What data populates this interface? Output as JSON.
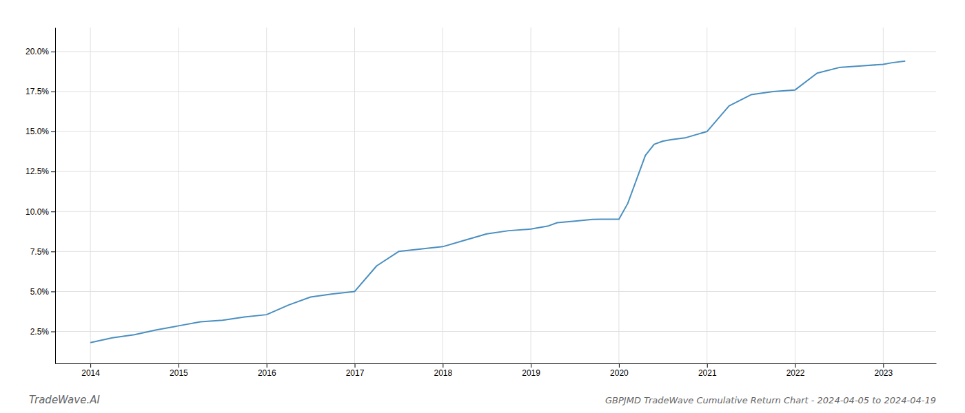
{
  "chart_data": {
    "type": "line",
    "title": "GBPJMD TradeWave Cumulative Return Chart - 2024-04-05 to 2024-04-19",
    "annotations": [
      "TradeWave.AI"
    ],
    "color": "#4a8fc0",
    "grid": true,
    "x": [
      2014.0,
      2014.25,
      2014.5,
      2014.75,
      2015.0,
      2015.25,
      2015.5,
      2015.75,
      2016.0,
      2016.25,
      2016.5,
      2016.75,
      2017.0,
      2017.25,
      2017.5,
      2017.75,
      2018.0,
      2018.25,
      2018.5,
      2018.75,
      2019.0,
      2019.1,
      2019.2,
      2019.3,
      2019.5,
      2019.6,
      2019.7,
      2019.8,
      2019.9,
      2019.95,
      2020.0,
      2020.1,
      2020.2,
      2020.3,
      2020.4,
      2020.5,
      2020.6,
      2020.75,
      2021.0,
      2021.25,
      2021.5,
      2021.75,
      2022.0,
      2022.25,
      2022.5,
      2022.75,
      2023.0,
      2023.1,
      2023.25
    ],
    "values": [
      1.8,
      2.1,
      2.3,
      2.6,
      2.85,
      3.1,
      3.2,
      3.4,
      3.55,
      4.15,
      4.65,
      4.85,
      5.0,
      6.6,
      7.5,
      7.65,
      7.8,
      8.2,
      8.6,
      8.8,
      8.9,
      9.0,
      9.1,
      9.3,
      9.4,
      9.45,
      9.5,
      9.52,
      9.52,
      9.52,
      9.52,
      10.5,
      12.0,
      13.5,
      14.2,
      14.4,
      14.5,
      14.6,
      15.0,
      16.6,
      17.3,
      17.5,
      17.6,
      18.65,
      19.0,
      19.1,
      19.2,
      19.3,
      19.4
    ],
    "xlim": [
      2013.6,
      2023.6
    ],
    "xticks": [
      2014,
      2015,
      2016,
      2017,
      2018,
      2019,
      2020,
      2021,
      2022,
      2023
    ],
    "ylim": [
      0.5,
      21.5
    ],
    "yticks": [
      {
        "value": 2.5,
        "label": "2.5%"
      },
      {
        "value": 5.0,
        "label": "5.0%"
      },
      {
        "value": 7.5,
        "label": "7.5%"
      },
      {
        "value": 10.0,
        "label": "10.0%"
      },
      {
        "value": 12.5,
        "label": "12.5%"
      },
      {
        "value": 15.0,
        "label": "15.0%"
      },
      {
        "value": 17.5,
        "label": "17.5%"
      },
      {
        "value": 20.0,
        "label": "20.0%"
      }
    ]
  }
}
